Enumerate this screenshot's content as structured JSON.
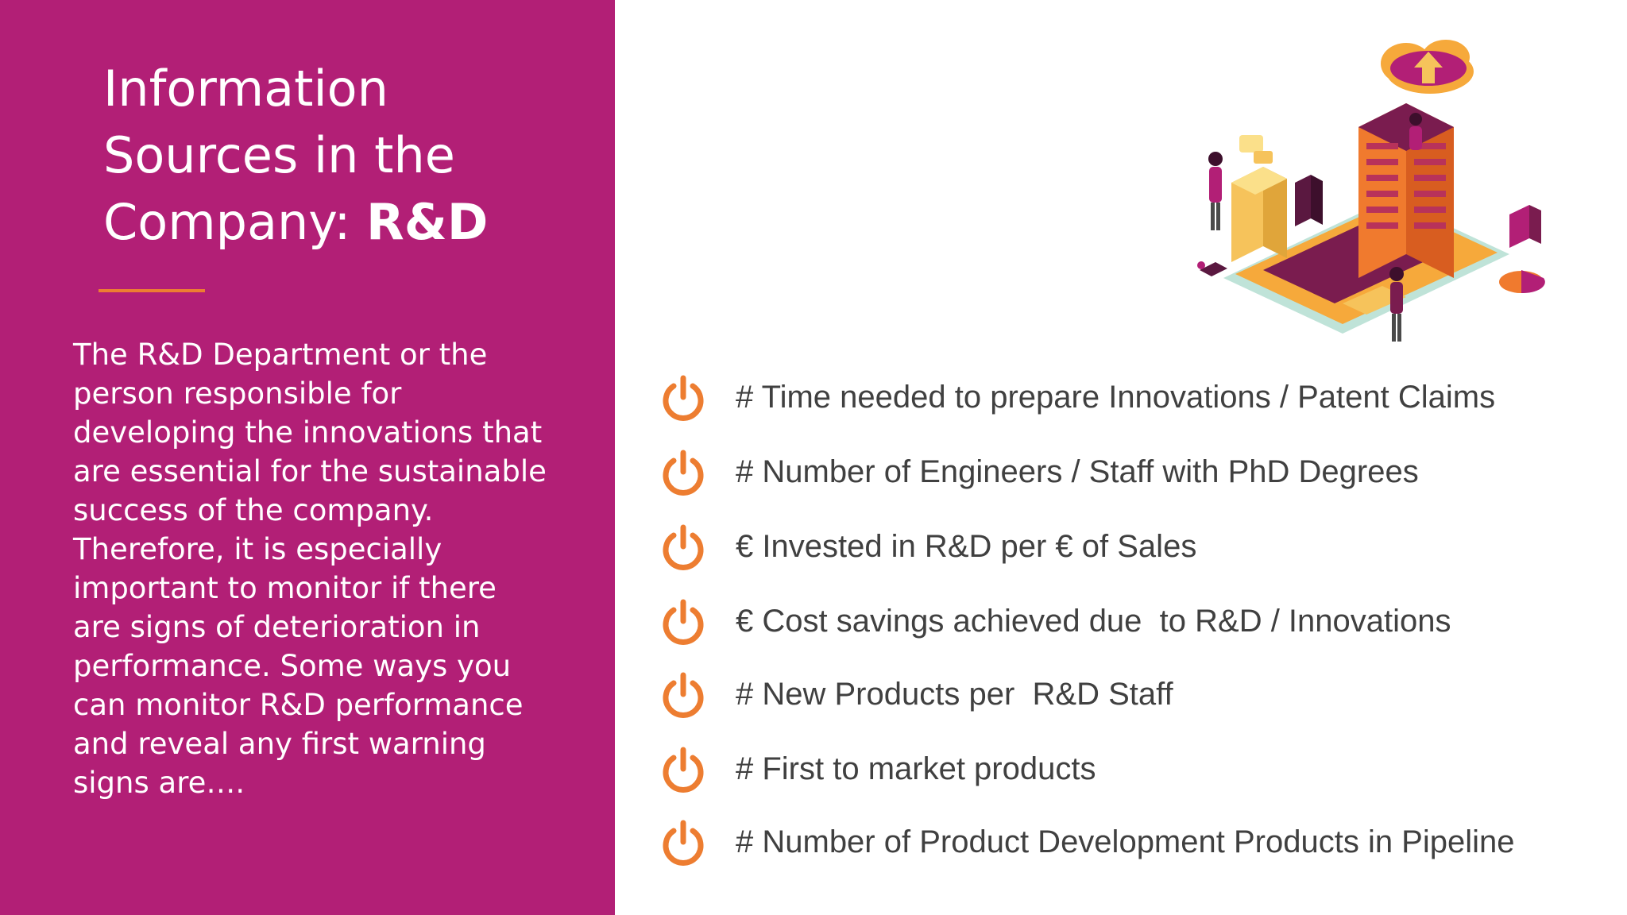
{
  "title": {
    "line1": "Information",
    "line2": "Sources in the",
    "line3_prefix": "Company: ",
    "line3_emph": "R&D"
  },
  "body": {
    "lines": [
      "The R&D Department or the",
      "person responsible for",
      "developing the innovations that",
      "are essential for the sustainable",
      "success of the company.",
      "Therefore, it is especially",
      "important to monitor if there",
      "are signs of deterioration in",
      "performance. Some ways you",
      "can monitor R&D performance",
      "and reveal any first warning",
      "signs are…."
    ]
  },
  "bullets": [
    {
      "text": "# Time needed to prepare Innovations / Patent Claims",
      "icon": "power-icon"
    },
    {
      "text": "# Number of Engineers / Staff with PhD Degrees",
      "icon": "power-icon"
    },
    {
      "text": "€ Invested in R&D per € of Sales",
      "icon": "power-icon"
    },
    {
      "text": "€ Cost savings achieved due  to R&D / Innovations",
      "icon": "power-icon"
    },
    {
      "text": "# New Products per  R&D Staff",
      "icon": "power-icon"
    },
    {
      "text": "# First to market products",
      "icon": "power-icon"
    },
    {
      "text": "# Number of Product Development Products in Pipeline",
      "icon": "power-icon"
    }
  ],
  "colors": {
    "panel": "#b21f76",
    "accent": "#ed7d31",
    "text_dark": "#404040",
    "text_light": "#ffffff"
  },
  "illustration": {
    "icon": "data-center-illustration"
  }
}
